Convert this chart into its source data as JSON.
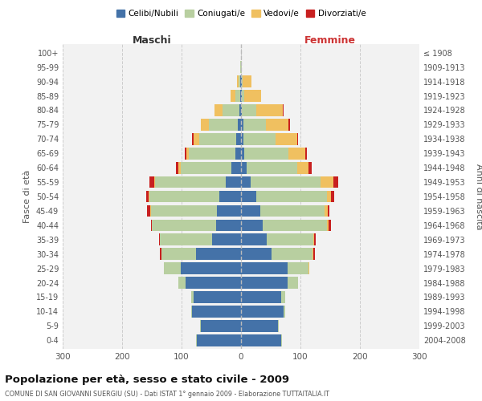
{
  "age_groups": [
    "0-4",
    "5-9",
    "10-14",
    "15-19",
    "20-24",
    "25-29",
    "30-34",
    "35-39",
    "40-44",
    "45-49",
    "50-54",
    "55-59",
    "60-64",
    "65-69",
    "70-74",
    "75-79",
    "80-84",
    "85-89",
    "90-94",
    "95-99",
    "100+"
  ],
  "birth_years": [
    "2004-2008",
    "1999-2003",
    "1994-1998",
    "1989-1993",
    "1984-1988",
    "1979-1983",
    "1974-1978",
    "1969-1973",
    "1964-1968",
    "1959-1963",
    "1954-1958",
    "1949-1953",
    "1944-1948",
    "1939-1943",
    "1934-1938",
    "1929-1933",
    "1924-1928",
    "1919-1923",
    "1914-1918",
    "1909-1913",
    "≤ 1908"
  ],
  "male_celibe": [
    75,
    68,
    82,
    80,
    93,
    102,
    76,
    48,
    42,
    40,
    36,
    26,
    16,
    10,
    8,
    6,
    3,
    2,
    1,
    0,
    0
  ],
  "male_coniugato": [
    1,
    1,
    2,
    4,
    13,
    28,
    58,
    88,
    108,
    112,
    118,
    118,
    86,
    78,
    62,
    48,
    28,
    8,
    3,
    1,
    0
  ],
  "male_vedovo": [
    0,
    0,
    0,
    0,
    0,
    0,
    0,
    0,
    0,
    1,
    1,
    2,
    3,
    4,
    10,
    14,
    14,
    8,
    3,
    0,
    0
  ],
  "male_divorziato": [
    0,
    0,
    0,
    0,
    0,
    0,
    2,
    2,
    2,
    5,
    5,
    8,
    5,
    3,
    3,
    0,
    0,
    0,
    0,
    0,
    0
  ],
  "female_celibe": [
    68,
    62,
    72,
    68,
    78,
    78,
    52,
    43,
    36,
    33,
    26,
    16,
    10,
    6,
    4,
    4,
    2,
    2,
    1,
    0,
    0
  ],
  "female_coniugato": [
    1,
    1,
    2,
    6,
    18,
    36,
    68,
    78,
    108,
    108,
    118,
    118,
    84,
    74,
    54,
    38,
    24,
    4,
    2,
    1,
    0
  ],
  "female_vedovo": [
    0,
    0,
    0,
    0,
    0,
    1,
    1,
    2,
    3,
    5,
    8,
    22,
    20,
    28,
    36,
    38,
    44,
    28,
    14,
    0,
    0
  ],
  "female_divorziato": [
    0,
    0,
    0,
    0,
    0,
    0,
    3,
    3,
    5,
    3,
    5,
    8,
    5,
    3,
    2,
    2,
    2,
    0,
    0,
    0,
    0
  ],
  "colors": {
    "celibe": "#4472a8",
    "coniugato": "#b8cfa0",
    "vedovo": "#f0c060",
    "divorziato": "#c82020"
  },
  "xlim": 300,
  "title": "Popolazione per età, sesso e stato civile - 2009",
  "subtitle": "COMUNE DI SAN GIOVANNI SUERGIU (SU) - Dati ISTAT 1° gennaio 2009 - Elaborazione TUTTAITALIA.IT",
  "xlabel_left": "Maschi",
  "xlabel_right": "Femmine",
  "ylabel_left": "Fasce di età",
  "ylabel_right": "Anni di nascita",
  "legend_labels": [
    "Celibi/Nubili",
    "Coniugati/e",
    "Vedovi/e",
    "Divorziati/e"
  ],
  "bg_color": "#f2f2f2",
  "bar_height": 0.82
}
